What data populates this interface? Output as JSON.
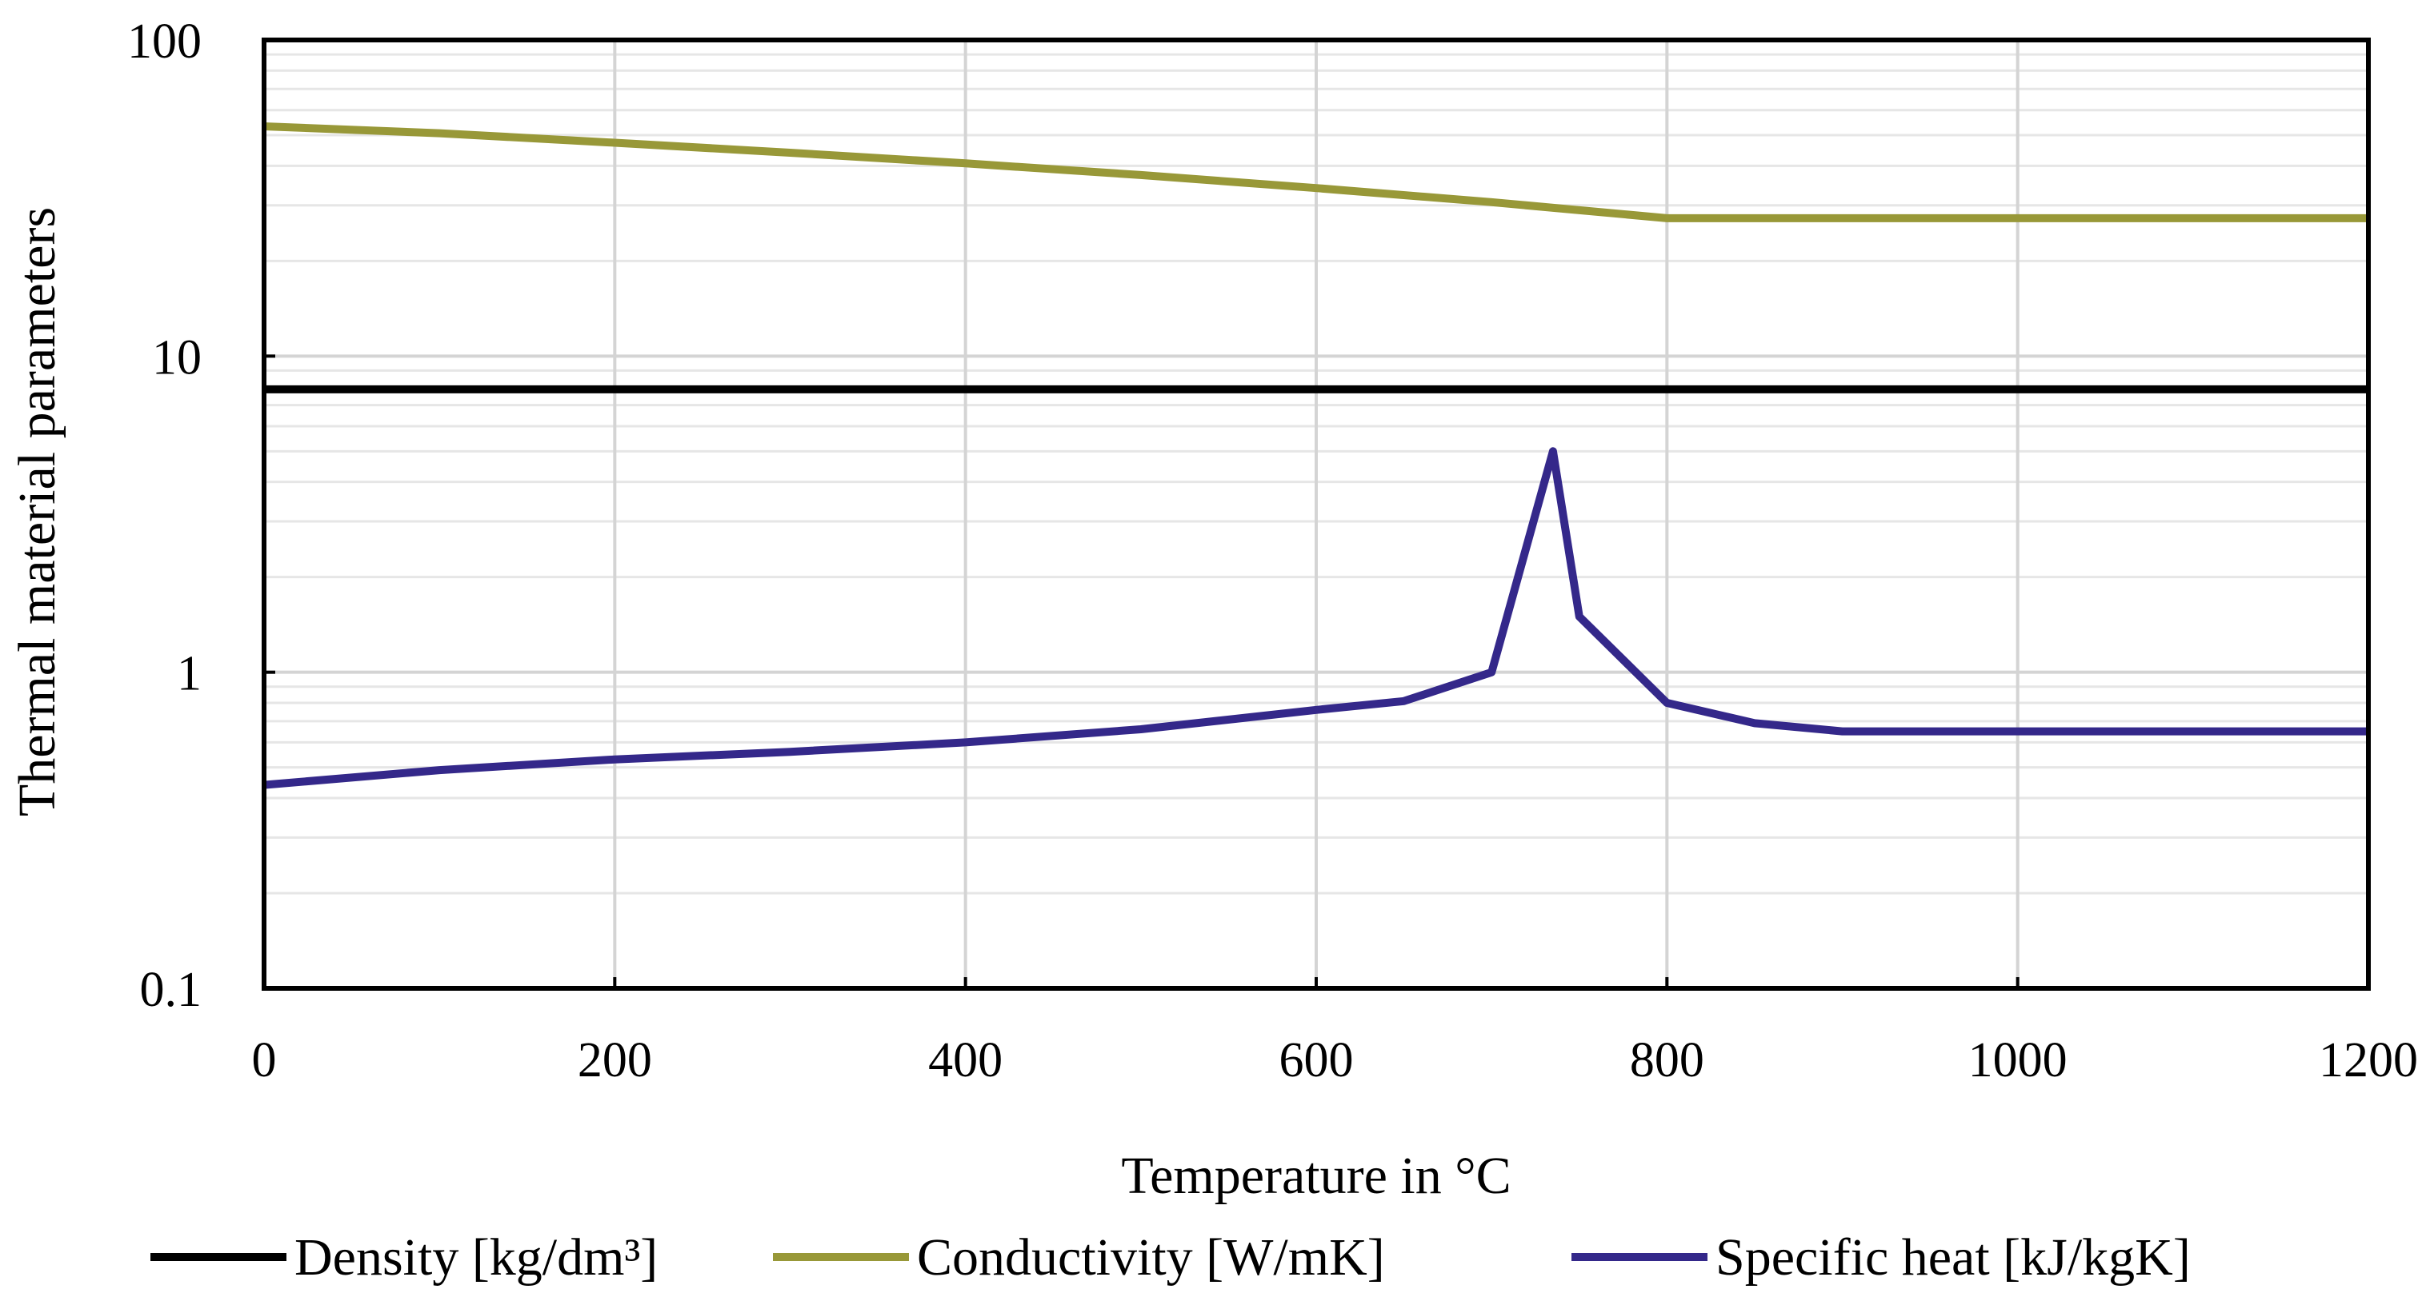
{
  "chart_data": {
    "type": "line",
    "title": "",
    "xlabel": "Temperature in °C",
    "ylabel": "Thermal material parameters",
    "xlim": [
      0,
      1200
    ],
    "ylim": [
      0.1,
      100
    ],
    "yscale": "log",
    "x_ticks": [
      0,
      200,
      400,
      600,
      800,
      1000,
      1200
    ],
    "x_tick_labels": [
      "0",
      "200",
      "400",
      "600",
      "800",
      "1000",
      "1200"
    ],
    "y_ticks": [
      0.1,
      1,
      10,
      100
    ],
    "y_tick_labels": [
      "0.1",
      "1",
      "10",
      "100"
    ],
    "grid": true,
    "legend_position": "bottom",
    "series": [
      {
        "name": "Density [kg/dm³]",
        "color": "#000000",
        "x": [
          0,
          1200
        ],
        "y": [
          7.85,
          7.85
        ]
      },
      {
        "name": "Conductivity [W/mK]",
        "color": "#989838",
        "x": [
          0,
          100,
          200,
          300,
          400,
          500,
          600,
          700,
          800,
          900,
          1000,
          1100,
          1200
        ],
        "y": [
          53.3,
          50.7,
          47.3,
          44.0,
          40.7,
          37.4,
          34.0,
          30.7,
          27.3,
          27.3,
          27.3,
          27.3,
          27.3
        ]
      },
      {
        "name": "Specific heat [kJ/kgK]",
        "color": "#34288a",
        "x": [
          0,
          100,
          200,
          300,
          400,
          500,
          600,
          650,
          700,
          735,
          750,
          800,
          850,
          900,
          1000,
          1100,
          1200
        ],
        "y": [
          0.44,
          0.49,
          0.53,
          0.56,
          0.6,
          0.66,
          0.76,
          0.81,
          1.0,
          5.0,
          1.5,
          0.8,
          0.69,
          0.65,
          0.65,
          0.65,
          0.65
        ]
      }
    ]
  }
}
